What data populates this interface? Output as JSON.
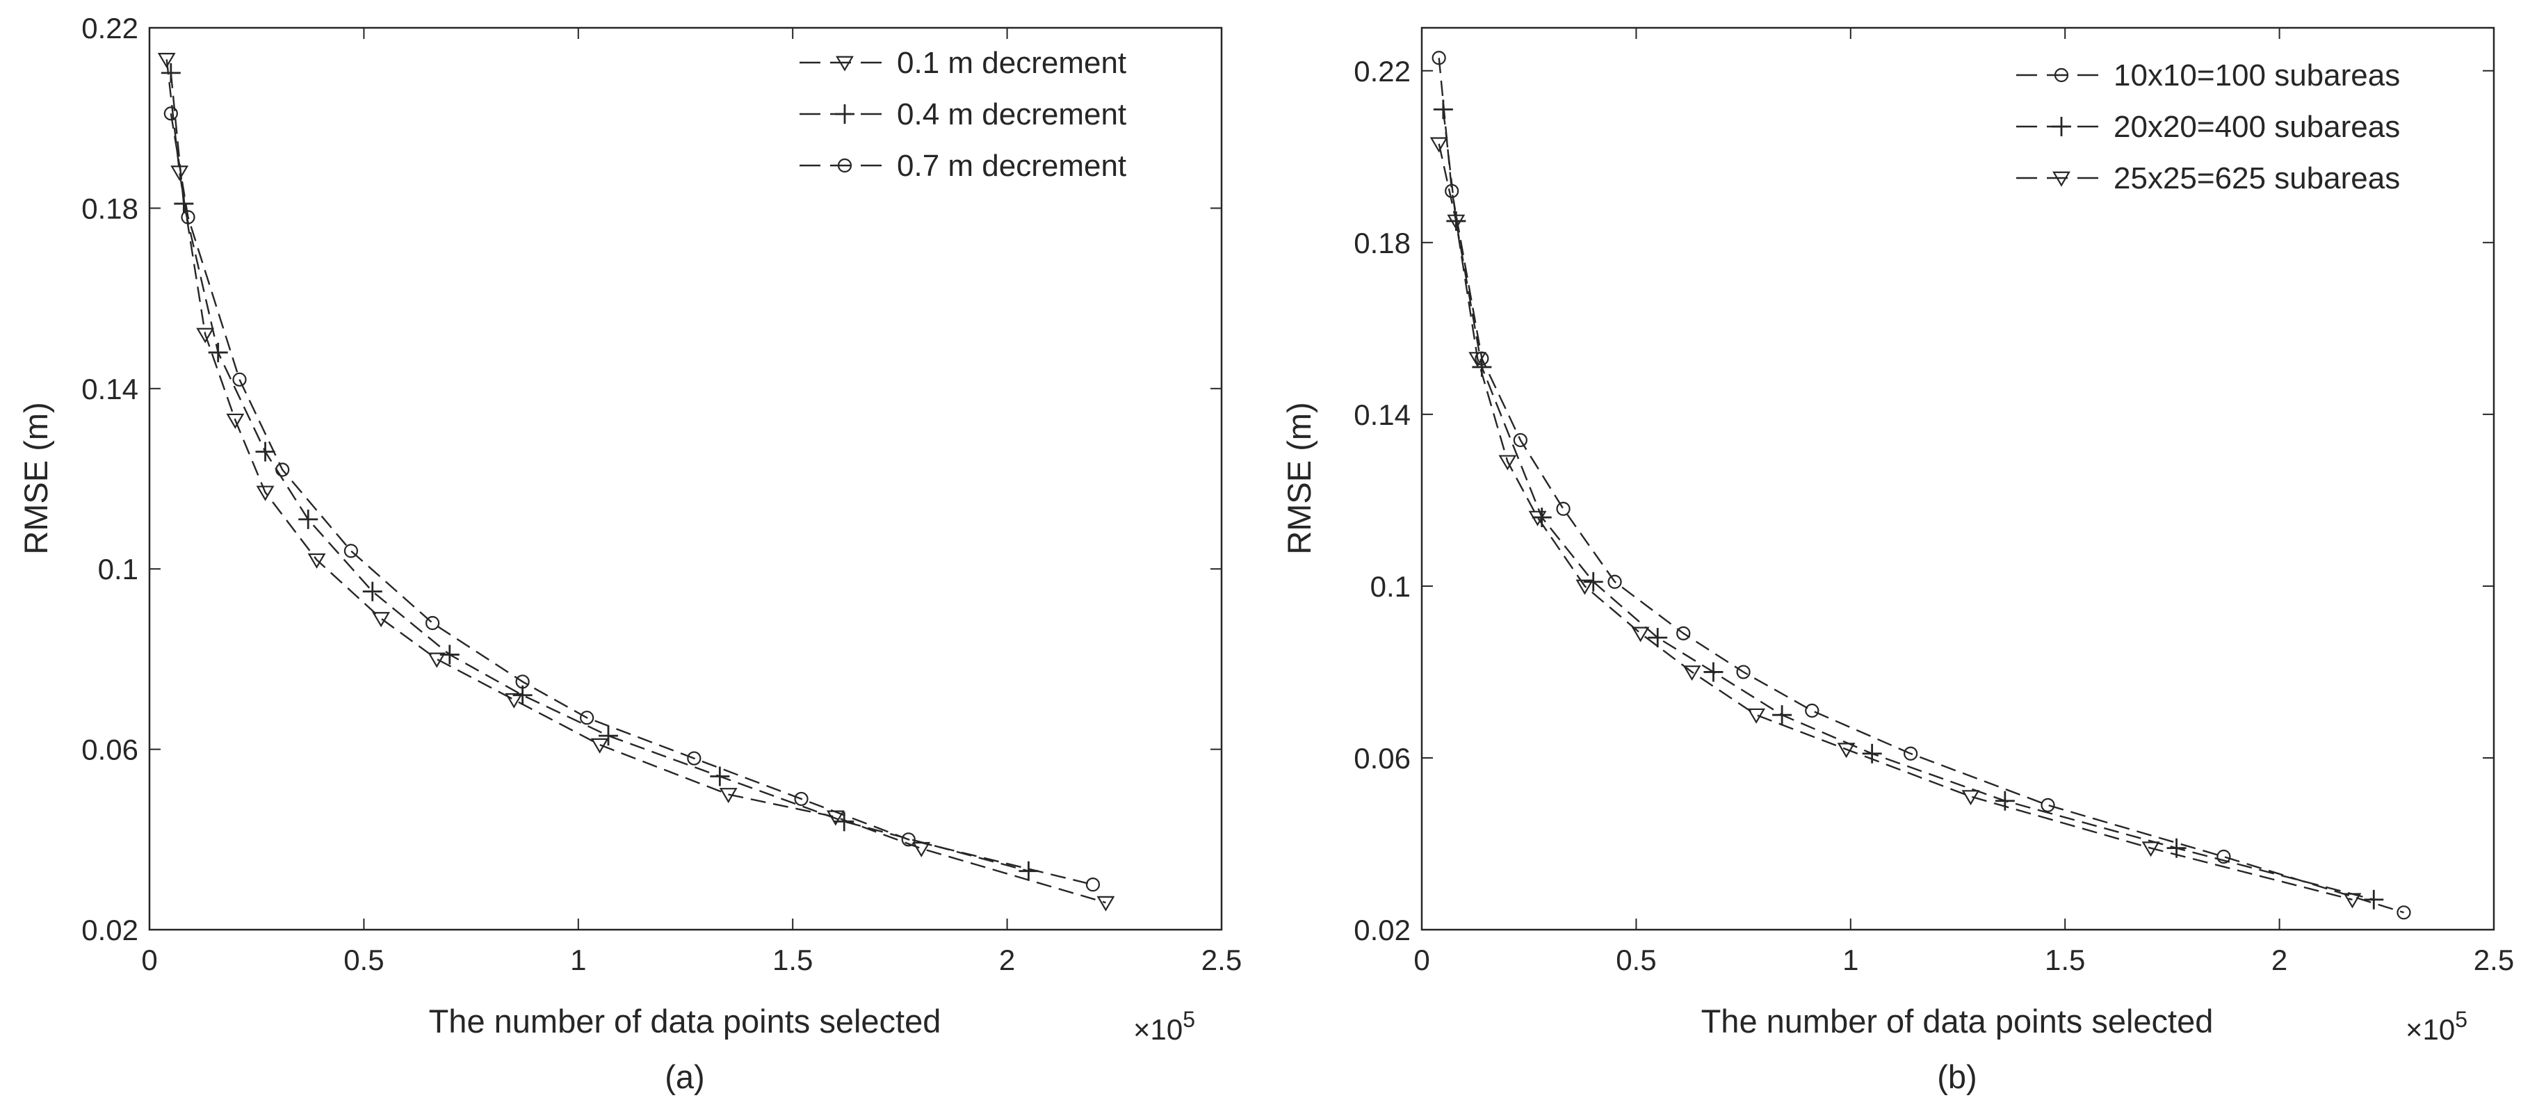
{
  "chart_data": [
    {
      "type": "line",
      "caption": "(a)",
      "xlabel": "The number of data points selected",
      "ylabel": "RMSE (m)",
      "x_exponent_base": "×10",
      "x_exponent_power": "5",
      "xlim": [
        0,
        2.5
      ],
      "ylim": [
        0.02,
        0.22
      ],
      "xticks": [
        0,
        0.5,
        1,
        1.5,
        2,
        2.5
      ],
      "xtick_labels": [
        "0",
        "0.5",
        "1",
        "1.5",
        "2",
        "2.5"
      ],
      "yticks": [
        0.02,
        0.06,
        0.1,
        0.14,
        0.18,
        0.22
      ],
      "ytick_labels": [
        "0.02",
        "0.06",
        "0.1",
        "0.14",
        "0.18",
        "0.22"
      ],
      "grid": false,
      "legend_position": "top-right",
      "series": [
        {
          "name": "0.1 m decrement",
          "marker": "triangle-down",
          "x": [
            0.04,
            0.07,
            0.13,
            0.2,
            0.27,
            0.39,
            0.54,
            0.67,
            0.85,
            1.05,
            1.35,
            1.6,
            1.8,
            2.23
          ],
          "y": [
            0.213,
            0.188,
            0.152,
            0.133,
            0.117,
            0.102,
            0.089,
            0.08,
            0.071,
            0.061,
            0.05,
            0.045,
            0.038,
            0.026
          ]
        },
        {
          "name": "0.4 m decrement",
          "marker": "plus",
          "x": [
            0.05,
            0.08,
            0.16,
            0.27,
            0.37,
            0.52,
            0.7,
            0.87,
            1.07,
            1.33,
            1.62,
            2.05
          ],
          "y": [
            0.21,
            0.181,
            0.148,
            0.126,
            0.111,
            0.095,
            0.081,
            0.072,
            0.063,
            0.054,
            0.044,
            0.033
          ]
        },
        {
          "name": "0.7 m decrement",
          "marker": "circle",
          "x": [
            0.05,
            0.09,
            0.21,
            0.31,
            0.47,
            0.66,
            0.87,
            1.02,
            1.27,
            1.52,
            1.77,
            2.2
          ],
          "y": [
            0.201,
            0.178,
            0.142,
            0.122,
            0.104,
            0.088,
            0.075,
            0.067,
            0.058,
            0.049,
            0.04,
            0.03
          ]
        }
      ]
    },
    {
      "type": "line",
      "caption": "(b)",
      "xlabel": "The number of data points selected",
      "ylabel": "RMSE (m)",
      "x_exponent_base": "×10",
      "x_exponent_power": "5",
      "xlim": [
        0,
        2.5
      ],
      "ylim": [
        0.02,
        0.23
      ],
      "xticks": [
        0,
        0.5,
        1,
        1.5,
        2,
        2.5
      ],
      "xtick_labels": [
        "0",
        "0.5",
        "1",
        "1.5",
        "2",
        "2.5"
      ],
      "yticks": [
        0.02,
        0.06,
        0.1,
        0.14,
        0.18,
        0.22
      ],
      "ytick_labels": [
        "0.02",
        "0.06",
        "0.1",
        "0.14",
        "0.18",
        "0.22"
      ],
      "grid": false,
      "legend_position": "top-right",
      "series": [
        {
          "name": "10x10=100 subareas",
          "marker": "circle",
          "x": [
            0.04,
            0.07,
            0.14,
            0.23,
            0.33,
            0.45,
            0.61,
            0.75,
            0.91,
            1.14,
            1.46,
            1.87,
            2.29
          ],
          "y": [
            0.223,
            0.192,
            0.153,
            0.134,
            0.118,
            0.101,
            0.089,
            0.08,
            0.071,
            0.061,
            0.049,
            0.037,
            0.024
          ]
        },
        {
          "name": "20x20=400 subareas",
          "marker": "plus",
          "x": [
            0.05,
            0.08,
            0.14,
            0.28,
            0.4,
            0.55,
            0.68,
            0.84,
            1.05,
            1.36,
            1.76,
            2.22
          ],
          "y": [
            0.211,
            0.185,
            0.151,
            0.116,
            0.101,
            0.088,
            0.08,
            0.07,
            0.061,
            0.05,
            0.039,
            0.027
          ]
        },
        {
          "name": "25x25=625 subareas",
          "marker": "triangle-down",
          "x": [
            0.04,
            0.08,
            0.13,
            0.2,
            0.27,
            0.38,
            0.51,
            0.63,
            0.78,
            0.99,
            1.28,
            1.7,
            2.17
          ],
          "y": [
            0.203,
            0.185,
            0.153,
            0.129,
            0.116,
            0.1,
            0.089,
            0.08,
            0.07,
            0.062,
            0.051,
            0.039,
            0.027
          ]
        }
      ]
    }
  ]
}
